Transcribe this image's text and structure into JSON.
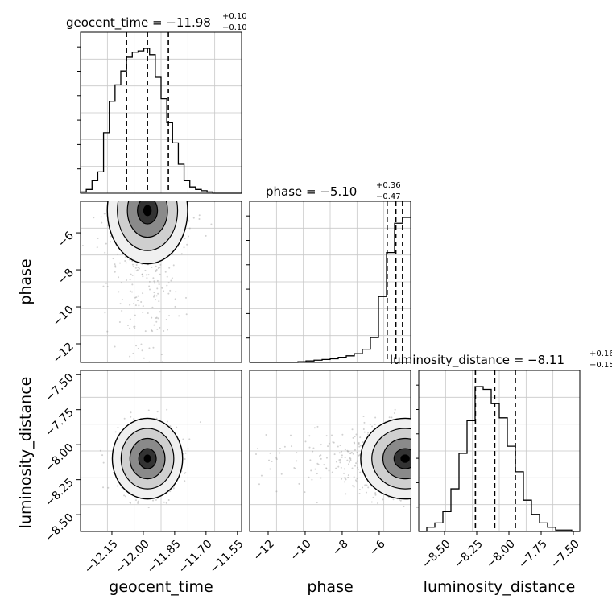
{
  "chart_data": {
    "type": "corner",
    "parameters": [
      {
        "name": "geocent_time",
        "label": "geocent_time",
        "title_base": "geocent_time = −11.98",
        "title_sup": "+0.10",
        "title_sub": "−0.10",
        "range": [
          -12.3,
          -11.53
        ],
        "ticks": [
          -12.15,
          -12.0,
          -11.85,
          -11.7,
          -11.55
        ],
        "tick_labels": [
          "−12.15",
          "−12.00",
          "−11.85",
          "−11.70",
          "−11.55"
        ],
        "quantiles": [
          -12.08,
          -11.98,
          -11.88
        ],
        "histogram": {
          "bin_width": 0.0275,
          "start": -12.3,
          "counts": [
            1,
            3,
            10,
            17,
            48,
            73,
            86,
            97,
            108,
            112,
            113,
            115,
            110,
            92,
            75,
            56,
            40,
            23,
            10,
            5,
            3,
            2,
            1,
            0,
            0,
            0,
            0,
            0
          ]
        }
      },
      {
        "name": "phase",
        "label": "phase",
        "title_base": "phase = −5.10",
        "title_sup": "+0.36",
        "title_sub": "−0.47",
        "range": [
          -13.0,
          -4.3
        ],
        "ticks": [
          -12,
          -10,
          -8,
          -6
        ],
        "tick_labels": [
          "−12",
          "−10",
          "−8",
          "−6"
        ],
        "quantiles": [
          -5.57,
          -5.1,
          -4.74
        ],
        "histogram": {
          "bin_width": 0.435,
          "start": -13.0,
          "counts": [
            0,
            0,
            0,
            0,
            0,
            0,
            1,
            2,
            3,
            4,
            5,
            7,
            9,
            12,
            18,
            34,
            90,
            150,
            190,
            198
          ]
        }
      },
      {
        "name": "luminosity_distance",
        "label": "luminosity_distance",
        "title_base": "luminosity_distance = −8.11",
        "title_sup": "+0.16",
        "title_sub": "−0.15",
        "range": [
          -8.7,
          -7.45
        ],
        "ticks": [
          -8.5,
          -8.25,
          -8.0,
          -7.75,
          -7.5
        ],
        "tick_labels": [
          "−8.50",
          "−8.25",
          "−8.00",
          "−7.75",
          "−7.50"
        ],
        "quantiles": [
          -8.26,
          -8.11,
          -7.95
        ],
        "histogram": {
          "bin_width": 0.0625,
          "start": -8.7,
          "counts": [
            0,
            3,
            6,
            14,
            30,
            55,
            78,
            102,
            100,
            90,
            80,
            60,
            42,
            22,
            12,
            6,
            3,
            1,
            1,
            0
          ]
        }
      }
    ],
    "pairs": [
      {
        "x": "geocent_time",
        "y": "phase",
        "y_ticks": [
          -12,
          -10,
          -8,
          -6
        ],
        "y_tick_labels": [
          "−12",
          "−10",
          "−8",
          "−6"
        ],
        "y_range": [
          -13.0,
          -4.3
        ],
        "center": [
          -11.98,
          -4.8
        ],
        "spread": [
          0.08,
          1.2
        ]
      },
      {
        "x": "geocent_time",
        "y": "luminosity_distance",
        "y_ticks": [
          -8.5,
          -8.25,
          -8.0,
          -7.75,
          -7.5
        ],
        "y_tick_labels": [
          "−8.50",
          "−8.25",
          "−8.00",
          "−7.75",
          "−7.50"
        ],
        "y_range": [
          -8.62,
          -7.47
        ],
        "center": [
          -11.98,
          -8.1
        ],
        "spread": [
          0.07,
          0.12
        ]
      },
      {
        "x": "phase",
        "y": "luminosity_distance",
        "y_range": [
          -8.62,
          -7.47
        ],
        "center": [
          -4.6,
          -8.1
        ],
        "spread": [
          1.0,
          0.12
        ]
      }
    ],
    "grid": true,
    "color": "#000000"
  }
}
